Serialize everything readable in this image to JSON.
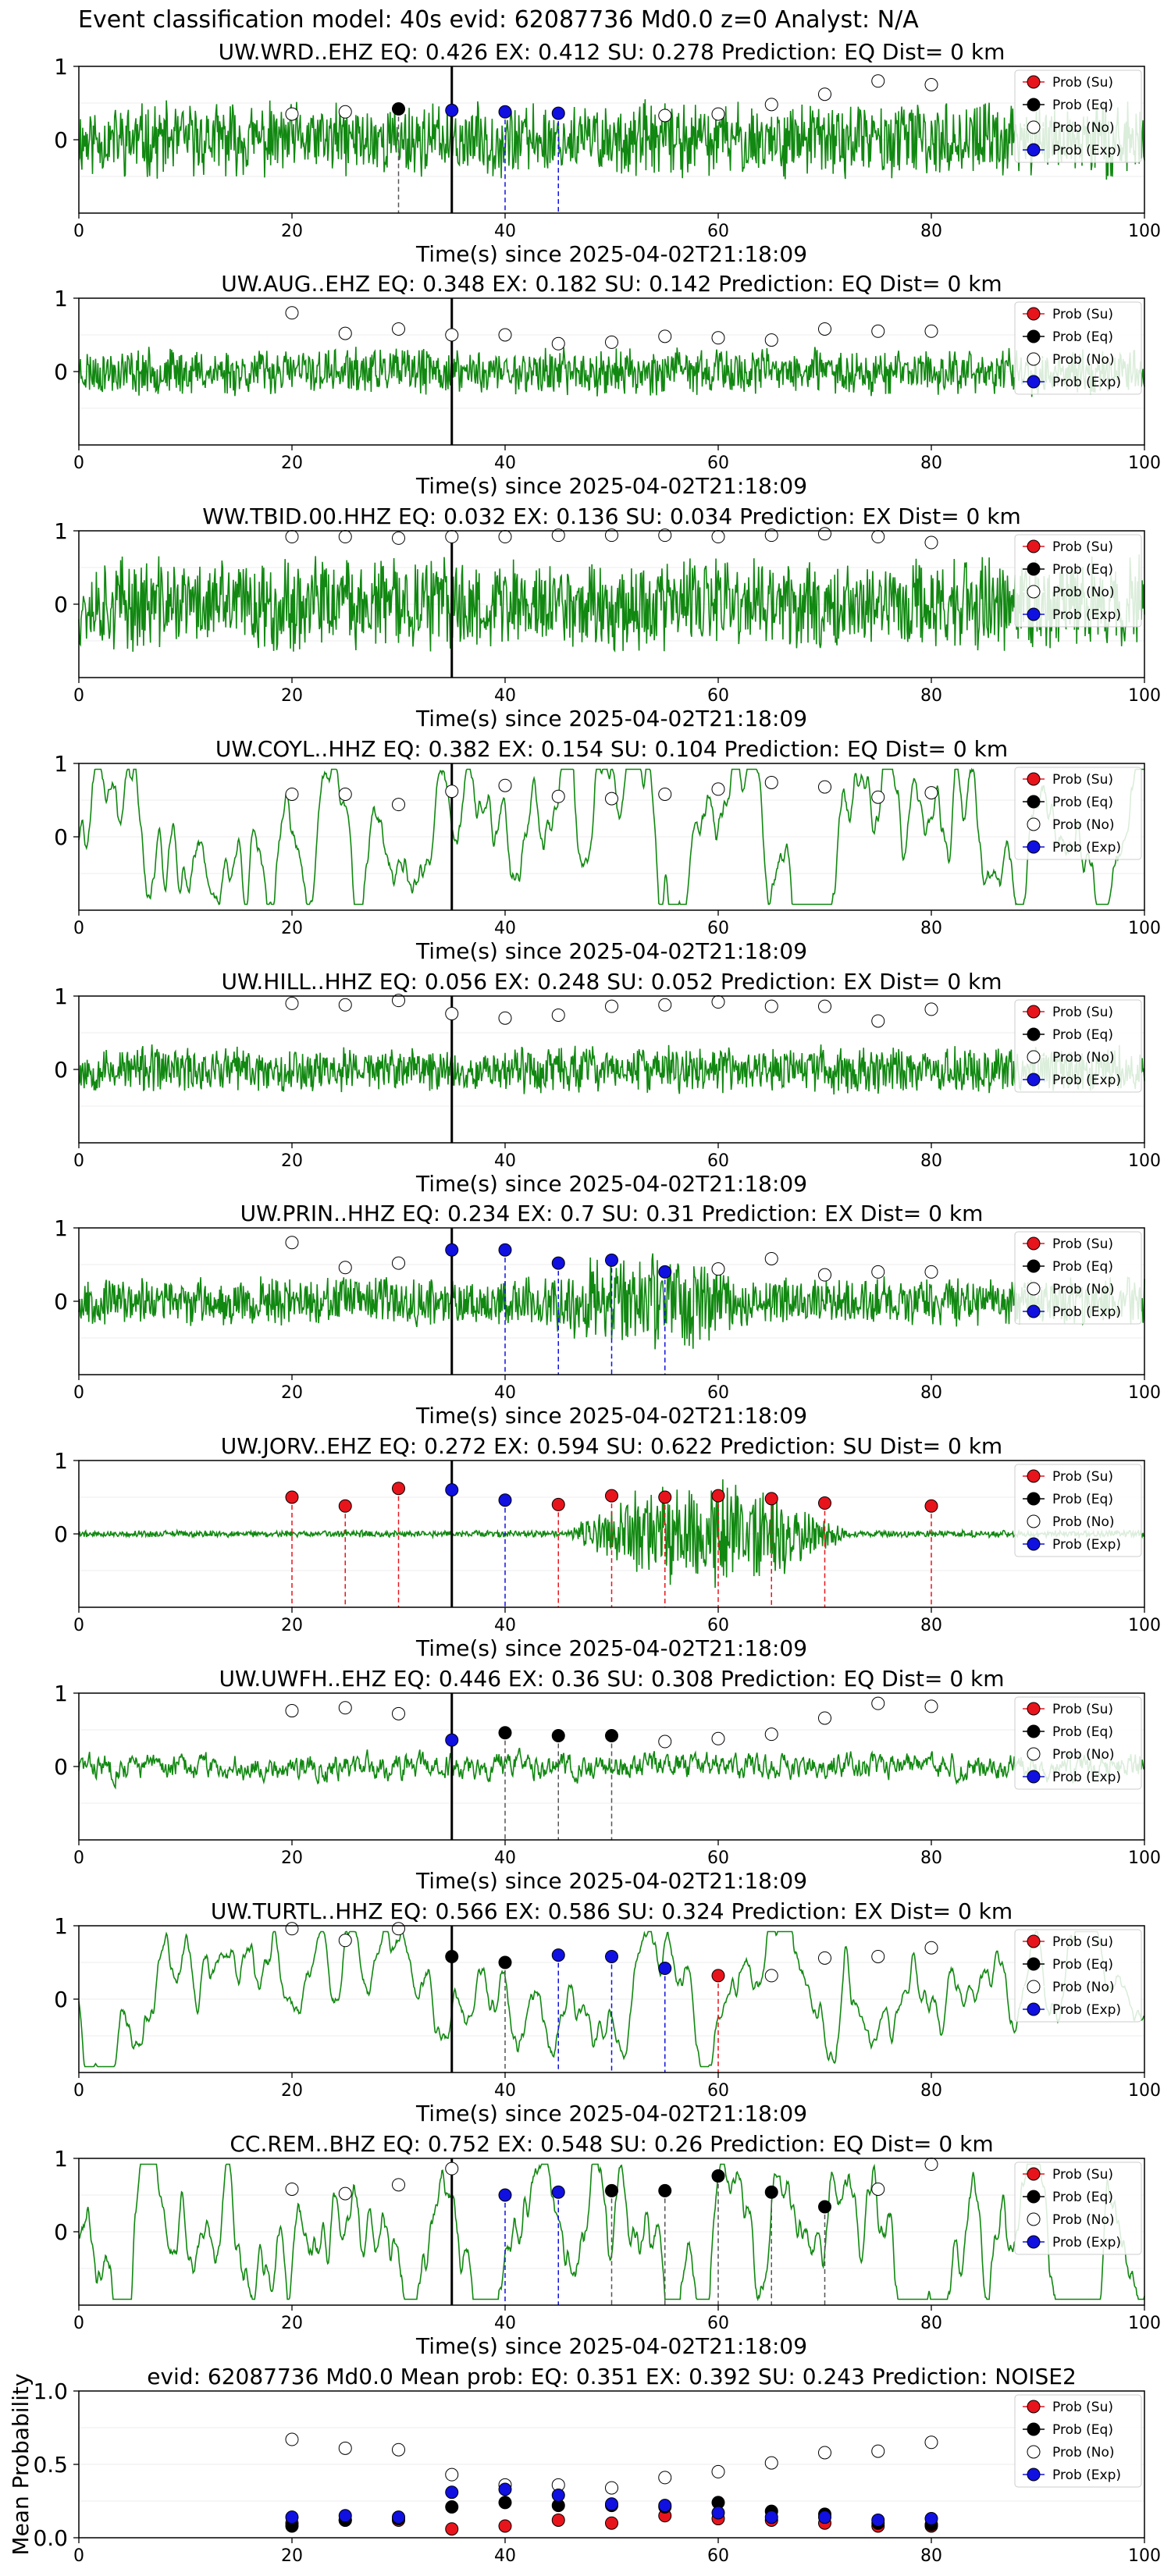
{
  "suptitle": "Event classification model: 40s evid: 62087736 Md0.0 z=0 Analyst: N/A",
  "colors": {
    "su": "#e8141c",
    "eq": "#000000",
    "no": "#ffffff",
    "exp": "#1010e0",
    "trace": "#118811"
  },
  "legend_labels": [
    "Prob (Su)",
    "Prob (Eq)",
    "Prob (No)",
    "Prob (Exp)"
  ],
  "legend_keys": [
    "su",
    "eq",
    "no",
    "exp"
  ],
  "shared": {
    "xlabel": "Time(s) since 2025-04-02T21:18:09",
    "xticks": [
      0,
      20,
      40,
      60,
      80,
      100
    ],
    "yticks": [
      1,
      0
    ],
    "xlim": [
      0,
      100
    ],
    "ylim": [
      -1,
      1
    ],
    "probe_times": [
      20,
      25,
      30,
      35,
      40,
      45,
      50,
      55,
      60,
      65,
      70,
      75,
      80
    ],
    "origin_line_time": 35
  },
  "chart_data": [
    {
      "type": "line",
      "title": "UW.WRD..EHZ   EQ: 0.426  EX: 0.412  SU: 0.278   Prediction: EQ    Dist= 0 km",
      "trace_style": "dense",
      "amplitude": 0.55,
      "seed": 11,
      "points": [
        {
          "t": 20,
          "p": 0.35,
          "c": "no"
        },
        {
          "t": 25,
          "p": 0.38,
          "c": "no"
        },
        {
          "t": 30,
          "p": 0.42,
          "c": "eq"
        },
        {
          "t": 35,
          "p": 0.4,
          "c": "exp"
        },
        {
          "t": 40,
          "p": 0.38,
          "c": "exp"
        },
        {
          "t": 45,
          "p": 0.36,
          "c": "exp"
        },
        {
          "t": 55,
          "p": 0.33,
          "c": "no"
        },
        {
          "t": 60,
          "p": 0.35,
          "c": "no"
        },
        {
          "t": 65,
          "p": 0.48,
          "c": "no"
        },
        {
          "t": 70,
          "p": 0.62,
          "c": "no"
        },
        {
          "t": 75,
          "p": 0.8,
          "c": "no"
        },
        {
          "t": 80,
          "p": 0.75,
          "c": "no"
        }
      ]
    },
    {
      "type": "line",
      "title": "UW.AUG..EHZ   EQ: 0.348  EX: 0.182  SU: 0.142   Prediction: EQ    Dist= 0 km",
      "trace_style": "dense",
      "amplitude": 0.35,
      "seed": 23,
      "points": [
        {
          "t": 20,
          "p": 0.8,
          "c": "no"
        },
        {
          "t": 25,
          "p": 0.52,
          "c": "no"
        },
        {
          "t": 30,
          "p": 0.58,
          "c": "no"
        },
        {
          "t": 35,
          "p": 0.5,
          "c": "no"
        },
        {
          "t": 40,
          "p": 0.5,
          "c": "no"
        },
        {
          "t": 45,
          "p": 0.38,
          "c": "no"
        },
        {
          "t": 50,
          "p": 0.4,
          "c": "no"
        },
        {
          "t": 55,
          "p": 0.48,
          "c": "no"
        },
        {
          "t": 60,
          "p": 0.46,
          "c": "no"
        },
        {
          "t": 65,
          "p": 0.43,
          "c": "no"
        },
        {
          "t": 70,
          "p": 0.58,
          "c": "no"
        },
        {
          "t": 75,
          "p": 0.55,
          "c": "no"
        },
        {
          "t": 80,
          "p": 0.55,
          "c": "no"
        }
      ]
    },
    {
      "type": "line",
      "title": "WW.TBID.00.HHZ   EQ: 0.032  EX: 0.136  SU: 0.034   Prediction: EX    Dist= 0 km",
      "trace_style": "dense",
      "amplitude": 0.7,
      "seed": 37,
      "points": [
        {
          "t": 20,
          "p": 0.92,
          "c": "no"
        },
        {
          "t": 25,
          "p": 0.92,
          "c": "no"
        },
        {
          "t": 30,
          "p": 0.9,
          "c": "no"
        },
        {
          "t": 35,
          "p": 0.92,
          "c": "no"
        },
        {
          "t": 40,
          "p": 0.92,
          "c": "no"
        },
        {
          "t": 45,
          "p": 0.94,
          "c": "no"
        },
        {
          "t": 50,
          "p": 0.94,
          "c": "no"
        },
        {
          "t": 55,
          "p": 0.94,
          "c": "no"
        },
        {
          "t": 60,
          "p": 0.92,
          "c": "no"
        },
        {
          "t": 65,
          "p": 0.94,
          "c": "no"
        },
        {
          "t": 70,
          "p": 0.96,
          "c": "no"
        },
        {
          "t": 75,
          "p": 0.92,
          "c": "no"
        },
        {
          "t": 80,
          "p": 0.84,
          "c": "no"
        }
      ]
    },
    {
      "type": "line",
      "title": "UW.COYL..HHZ   EQ: 0.382  EX: 0.154  SU: 0.104   Prediction: EQ    Dist= 0 km",
      "trace_style": "smooth",
      "amplitude": 0.55,
      "seed": 41,
      "points": [
        {
          "t": 20,
          "p": 0.58,
          "c": "no"
        },
        {
          "t": 25,
          "p": 0.58,
          "c": "no"
        },
        {
          "t": 30,
          "p": 0.44,
          "c": "no"
        },
        {
          "t": 35,
          "p": 0.62,
          "c": "no"
        },
        {
          "t": 40,
          "p": 0.7,
          "c": "no"
        },
        {
          "t": 45,
          "p": 0.55,
          "c": "no"
        },
        {
          "t": 50,
          "p": 0.52,
          "c": "no"
        },
        {
          "t": 55,
          "p": 0.58,
          "c": "no"
        },
        {
          "t": 60,
          "p": 0.65,
          "c": "no"
        },
        {
          "t": 65,
          "p": 0.74,
          "c": "no"
        },
        {
          "t": 70,
          "p": 0.68,
          "c": "no"
        },
        {
          "t": 75,
          "p": 0.54,
          "c": "no"
        },
        {
          "t": 80,
          "p": 0.6,
          "c": "no"
        }
      ]
    },
    {
      "type": "line",
      "title": "UW.HILL..HHZ   EQ: 0.056  EX: 0.248  SU: 0.052   Prediction: EX    Dist= 0 km",
      "trace_style": "dense",
      "amplitude": 0.35,
      "seed": 53,
      "points": [
        {
          "t": 20,
          "p": 0.9,
          "c": "no"
        },
        {
          "t": 25,
          "p": 0.88,
          "c": "no"
        },
        {
          "t": 30,
          "p": 0.94,
          "c": "no"
        },
        {
          "t": 35,
          "p": 0.76,
          "c": "no"
        },
        {
          "t": 40,
          "p": 0.7,
          "c": "no"
        },
        {
          "t": 45,
          "p": 0.74,
          "c": "no"
        },
        {
          "t": 50,
          "p": 0.86,
          "c": "no"
        },
        {
          "t": 55,
          "p": 0.88,
          "c": "no"
        },
        {
          "t": 60,
          "p": 0.92,
          "c": "no"
        },
        {
          "t": 65,
          "p": 0.86,
          "c": "no"
        },
        {
          "t": 70,
          "p": 0.86,
          "c": "no"
        },
        {
          "t": 75,
          "p": 0.66,
          "c": "no"
        },
        {
          "t": 80,
          "p": 0.82,
          "c": "no"
        }
      ]
    },
    {
      "type": "line",
      "title": "UW.PRIN..HHZ   EQ: 0.234  EX: 0.7  SU: 0.31   Prediction: EX    Dist= 0 km",
      "trace_style": "dense",
      "amplitude": 0.35,
      "seed": 67,
      "burst": {
        "start": 44,
        "end": 64,
        "gain": 2.2
      },
      "points": [
        {
          "t": 20,
          "p": 0.8,
          "c": "no"
        },
        {
          "t": 25,
          "p": 0.46,
          "c": "no"
        },
        {
          "t": 30,
          "p": 0.52,
          "c": "no"
        },
        {
          "t": 35,
          "p": 0.7,
          "c": "exp"
        },
        {
          "t": 40,
          "p": 0.7,
          "c": "exp"
        },
        {
          "t": 45,
          "p": 0.52,
          "c": "exp"
        },
        {
          "t": 50,
          "p": 0.56,
          "c": "exp"
        },
        {
          "t": 55,
          "p": 0.4,
          "c": "exp"
        },
        {
          "t": 60,
          "p": 0.44,
          "c": "no"
        },
        {
          "t": 65,
          "p": 0.58,
          "c": "no"
        },
        {
          "t": 70,
          "p": 0.36,
          "c": "no"
        },
        {
          "t": 75,
          "p": 0.4,
          "c": "no"
        },
        {
          "t": 80,
          "p": 0.4,
          "c": "no"
        }
      ]
    },
    {
      "type": "line",
      "title": "UW.JORV..EHZ   EQ: 0.272  EX: 0.594  SU: 0.622   Prediction: SU    Dist= 0 km",
      "trace_style": "quiet",
      "amplitude": 0.05,
      "seed": 79,
      "burst": {
        "start": 46,
        "end": 72,
        "gain": 16
      },
      "points": [
        {
          "t": 20,
          "p": 0.5,
          "c": "su"
        },
        {
          "t": 25,
          "p": 0.38,
          "c": "su"
        },
        {
          "t": 30,
          "p": 0.62,
          "c": "su"
        },
        {
          "t": 35,
          "p": 0.6,
          "c": "exp"
        },
        {
          "t": 40,
          "p": 0.46,
          "c": "exp"
        },
        {
          "t": 45,
          "p": 0.4,
          "c": "su"
        },
        {
          "t": 50,
          "p": 0.52,
          "c": "su"
        },
        {
          "t": 55,
          "p": 0.5,
          "c": "su"
        },
        {
          "t": 60,
          "p": 0.52,
          "c": "su"
        },
        {
          "t": 65,
          "p": 0.48,
          "c": "su"
        },
        {
          "t": 70,
          "p": 0.42,
          "c": "su"
        },
        {
          "t": 80,
          "p": 0.38,
          "c": "su"
        }
      ]
    },
    {
      "type": "line",
      "title": "UW.UWFH..EHZ   EQ: 0.446  EX: 0.36  SU: 0.308   Prediction: EQ    Dist= 0 km",
      "trace_style": "medium",
      "amplitude": 0.28,
      "seed": 83,
      "points": [
        {
          "t": 20,
          "p": 0.76,
          "c": "no"
        },
        {
          "t": 25,
          "p": 0.8,
          "c": "no"
        },
        {
          "t": 30,
          "p": 0.72,
          "c": "no"
        },
        {
          "t": 35,
          "p": 0.36,
          "c": "exp"
        },
        {
          "t": 40,
          "p": 0.46,
          "c": "eq"
        },
        {
          "t": 45,
          "p": 0.42,
          "c": "eq"
        },
        {
          "t": 50,
          "p": 0.42,
          "c": "eq"
        },
        {
          "t": 55,
          "p": 0.34,
          "c": "no"
        },
        {
          "t": 60,
          "p": 0.38,
          "c": "no"
        },
        {
          "t": 65,
          "p": 0.44,
          "c": "no"
        },
        {
          "t": 70,
          "p": 0.66,
          "c": "no"
        },
        {
          "t": 75,
          "p": 0.86,
          "c": "no"
        },
        {
          "t": 80,
          "p": 0.82,
          "c": "no"
        }
      ]
    },
    {
      "type": "line",
      "title": "UW.TURTL..HHZ   EQ: 0.566  EX: 0.586  SU: 0.324   Prediction: EX    Dist= 0 km",
      "trace_style": "smooth",
      "amplitude": 0.4,
      "seed": 97,
      "points": [
        {
          "t": 20,
          "p": 0.96,
          "c": "no"
        },
        {
          "t": 25,
          "p": 0.8,
          "c": "no"
        },
        {
          "t": 30,
          "p": 0.96,
          "c": "no"
        },
        {
          "t": 35,
          "p": 0.58,
          "c": "eq"
        },
        {
          "t": 40,
          "p": 0.5,
          "c": "eq"
        },
        {
          "t": 45,
          "p": 0.6,
          "c": "exp"
        },
        {
          "t": 50,
          "p": 0.58,
          "c": "exp"
        },
        {
          "t": 55,
          "p": 0.42,
          "c": "exp"
        },
        {
          "t": 60,
          "p": 0.32,
          "c": "su"
        },
        {
          "t": 65,
          "p": 0.32,
          "c": "no"
        },
        {
          "t": 70,
          "p": 0.56,
          "c": "no"
        },
        {
          "t": 75,
          "p": 0.58,
          "c": "no"
        },
        {
          "t": 80,
          "p": 0.7,
          "c": "no"
        }
      ]
    },
    {
      "type": "line",
      "title": "CC.REM..BHZ   EQ: 0.752  EX: 0.548  SU: 0.26   Prediction: EQ    Dist= 0 km",
      "trace_style": "smooth",
      "amplitude": 0.6,
      "seed": 101,
      "points": [
        {
          "t": 20,
          "p": 0.58,
          "c": "no"
        },
        {
          "t": 25,
          "p": 0.52,
          "c": "no"
        },
        {
          "t": 30,
          "p": 0.64,
          "c": "no"
        },
        {
          "t": 35,
          "p": 0.86,
          "c": "no"
        },
        {
          "t": 40,
          "p": 0.5,
          "c": "exp"
        },
        {
          "t": 45,
          "p": 0.54,
          "c": "exp"
        },
        {
          "t": 50,
          "p": 0.56,
          "c": "eq"
        },
        {
          "t": 55,
          "p": 0.56,
          "c": "eq"
        },
        {
          "t": 60,
          "p": 0.76,
          "c": "eq"
        },
        {
          "t": 65,
          "p": 0.54,
          "c": "eq"
        },
        {
          "t": 70,
          "p": 0.34,
          "c": "eq"
        },
        {
          "t": 75,
          "p": 0.58,
          "c": "no"
        },
        {
          "t": 80,
          "p": 0.92,
          "c": "no"
        }
      ]
    },
    {
      "type": "scatter",
      "title": "evid: 62087736  Md0.0   Mean prob:   EQ: 0.351  EX: 0.392  SU: 0.243   Prediction: NOISE2",
      "ylabel": "Mean Probability",
      "ylim": [
        0,
        1
      ],
      "yticks": [
        1.0,
        0.5,
        0.0
      ],
      "series": [
        {
          "key": "su",
          "x": [
            20,
            25,
            30,
            35,
            40,
            45,
            50,
            55,
            60,
            65,
            70,
            75,
            80
          ],
          "y": [
            0.1,
            0.12,
            0.12,
            0.06,
            0.08,
            0.12,
            0.1,
            0.15,
            0.13,
            0.12,
            0.1,
            0.08,
            0.08
          ]
        },
        {
          "key": "eq",
          "x": [
            20,
            25,
            30,
            35,
            40,
            45,
            50,
            55,
            60,
            65,
            70,
            75,
            80
          ],
          "y": [
            0.08,
            0.12,
            0.13,
            0.21,
            0.24,
            0.22,
            0.22,
            0.21,
            0.24,
            0.18,
            0.16,
            0.1,
            0.09
          ]
        },
        {
          "key": "no",
          "x": [
            20,
            25,
            30,
            35,
            40,
            45,
            50,
            55,
            60,
            65,
            70,
            75,
            80
          ],
          "y": [
            0.67,
            0.61,
            0.6,
            0.43,
            0.36,
            0.36,
            0.34,
            0.41,
            0.45,
            0.51,
            0.58,
            0.59,
            0.65
          ]
        },
        {
          "key": "exp",
          "x": [
            20,
            25,
            30,
            35,
            40,
            45,
            50,
            55,
            60,
            65,
            70,
            75,
            80
          ],
          "y": [
            0.14,
            0.15,
            0.14,
            0.31,
            0.33,
            0.29,
            0.23,
            0.22,
            0.17,
            0.14,
            0.14,
            0.12,
            0.13
          ]
        }
      ]
    }
  ]
}
